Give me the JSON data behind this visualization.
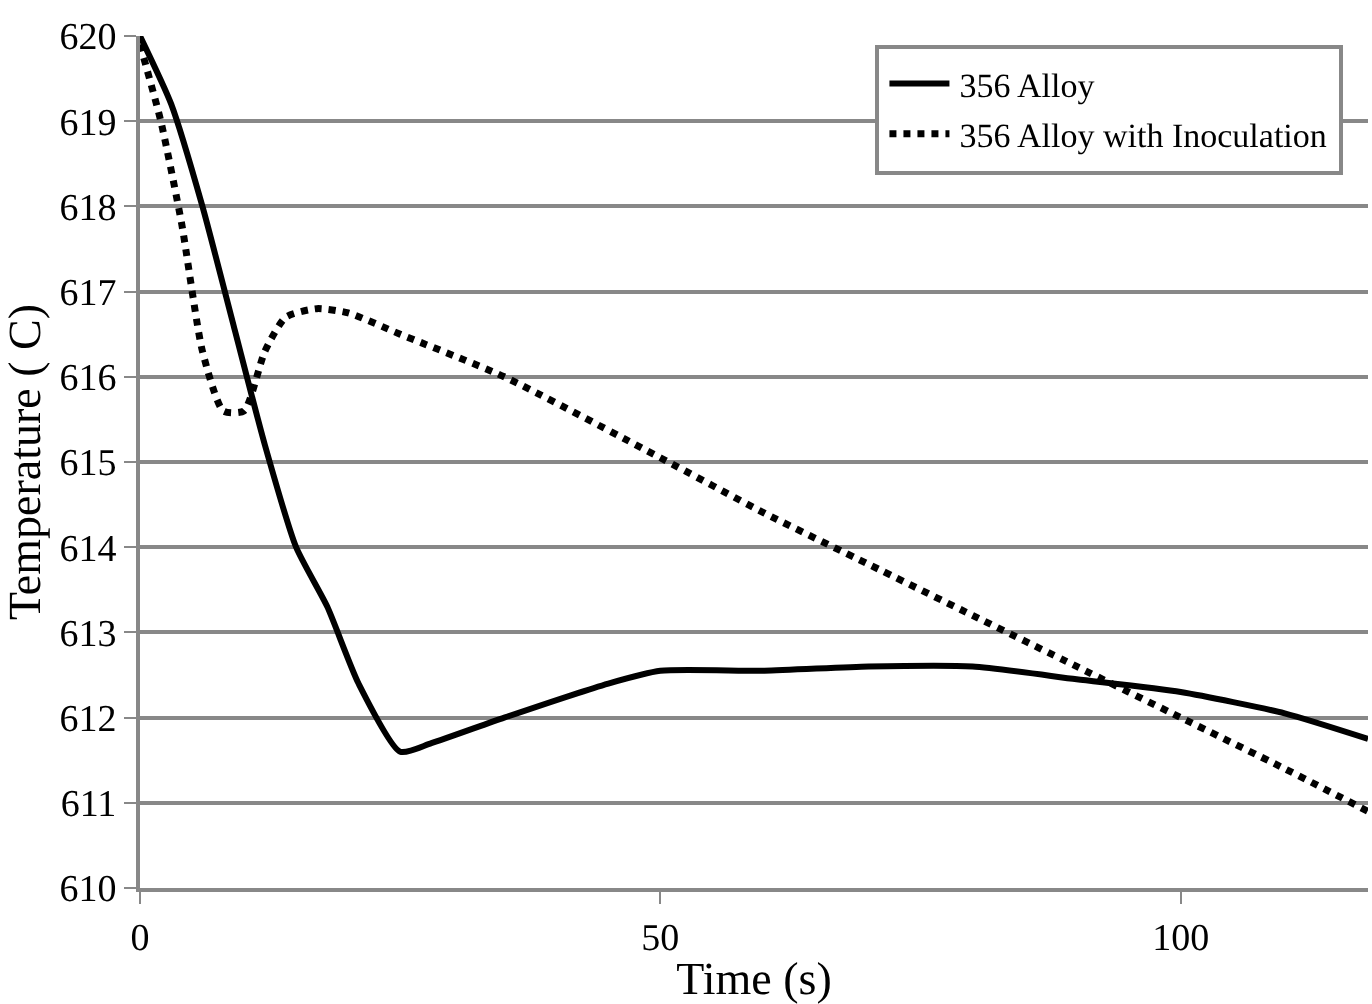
{
  "chart_data": {
    "type": "line",
    "xlabel": "Time (s)",
    "ylabel": "Temperature ( C)",
    "xlim": [
      0,
      118
    ],
    "xticks": [
      0,
      50,
      100
    ],
    "ylim": [
      610,
      620
    ],
    "yticks": [
      610,
      611,
      612,
      613,
      614,
      615,
      616,
      617,
      618,
      619,
      620
    ],
    "grid": "y",
    "legend": "top right",
    "marker": "none",
    "series": [
      {
        "name": "356 Alloy",
        "color": "#000000",
        "line_style": "solid",
        "x": [
          0,
          3,
          6,
          9,
          12,
          15,
          18,
          21,
          25,
          28,
          35,
          45,
          50,
          60,
          70,
          80,
          90,
          100,
          110,
          118
        ],
        "values": [
          620,
          619.2,
          618,
          616.6,
          615.2,
          614,
          613.3,
          612.4,
          611.6,
          611.7,
          612,
          612.4,
          612.55,
          612.55,
          612.6,
          612.6,
          612.45,
          612.3,
          612.05,
          611.75
        ]
      },
      {
        "name": "356 Alloy with Inoculation",
        "color": "#000000",
        "line_style": "dotted",
        "x": [
          0,
          2,
          4,
          6,
          8,
          10,
          12,
          14,
          17,
          20,
          25,
          35,
          50,
          60,
          70,
          80,
          90,
          100,
          110,
          118
        ],
        "values": [
          619.9,
          619,
          617.8,
          616.3,
          615.6,
          615.6,
          616.3,
          616.7,
          616.8,
          616.75,
          616.5,
          616,
          615.05,
          614.4,
          613.8,
          613.2,
          612.6,
          612,
          611.4,
          610.9
        ]
      }
    ]
  }
}
